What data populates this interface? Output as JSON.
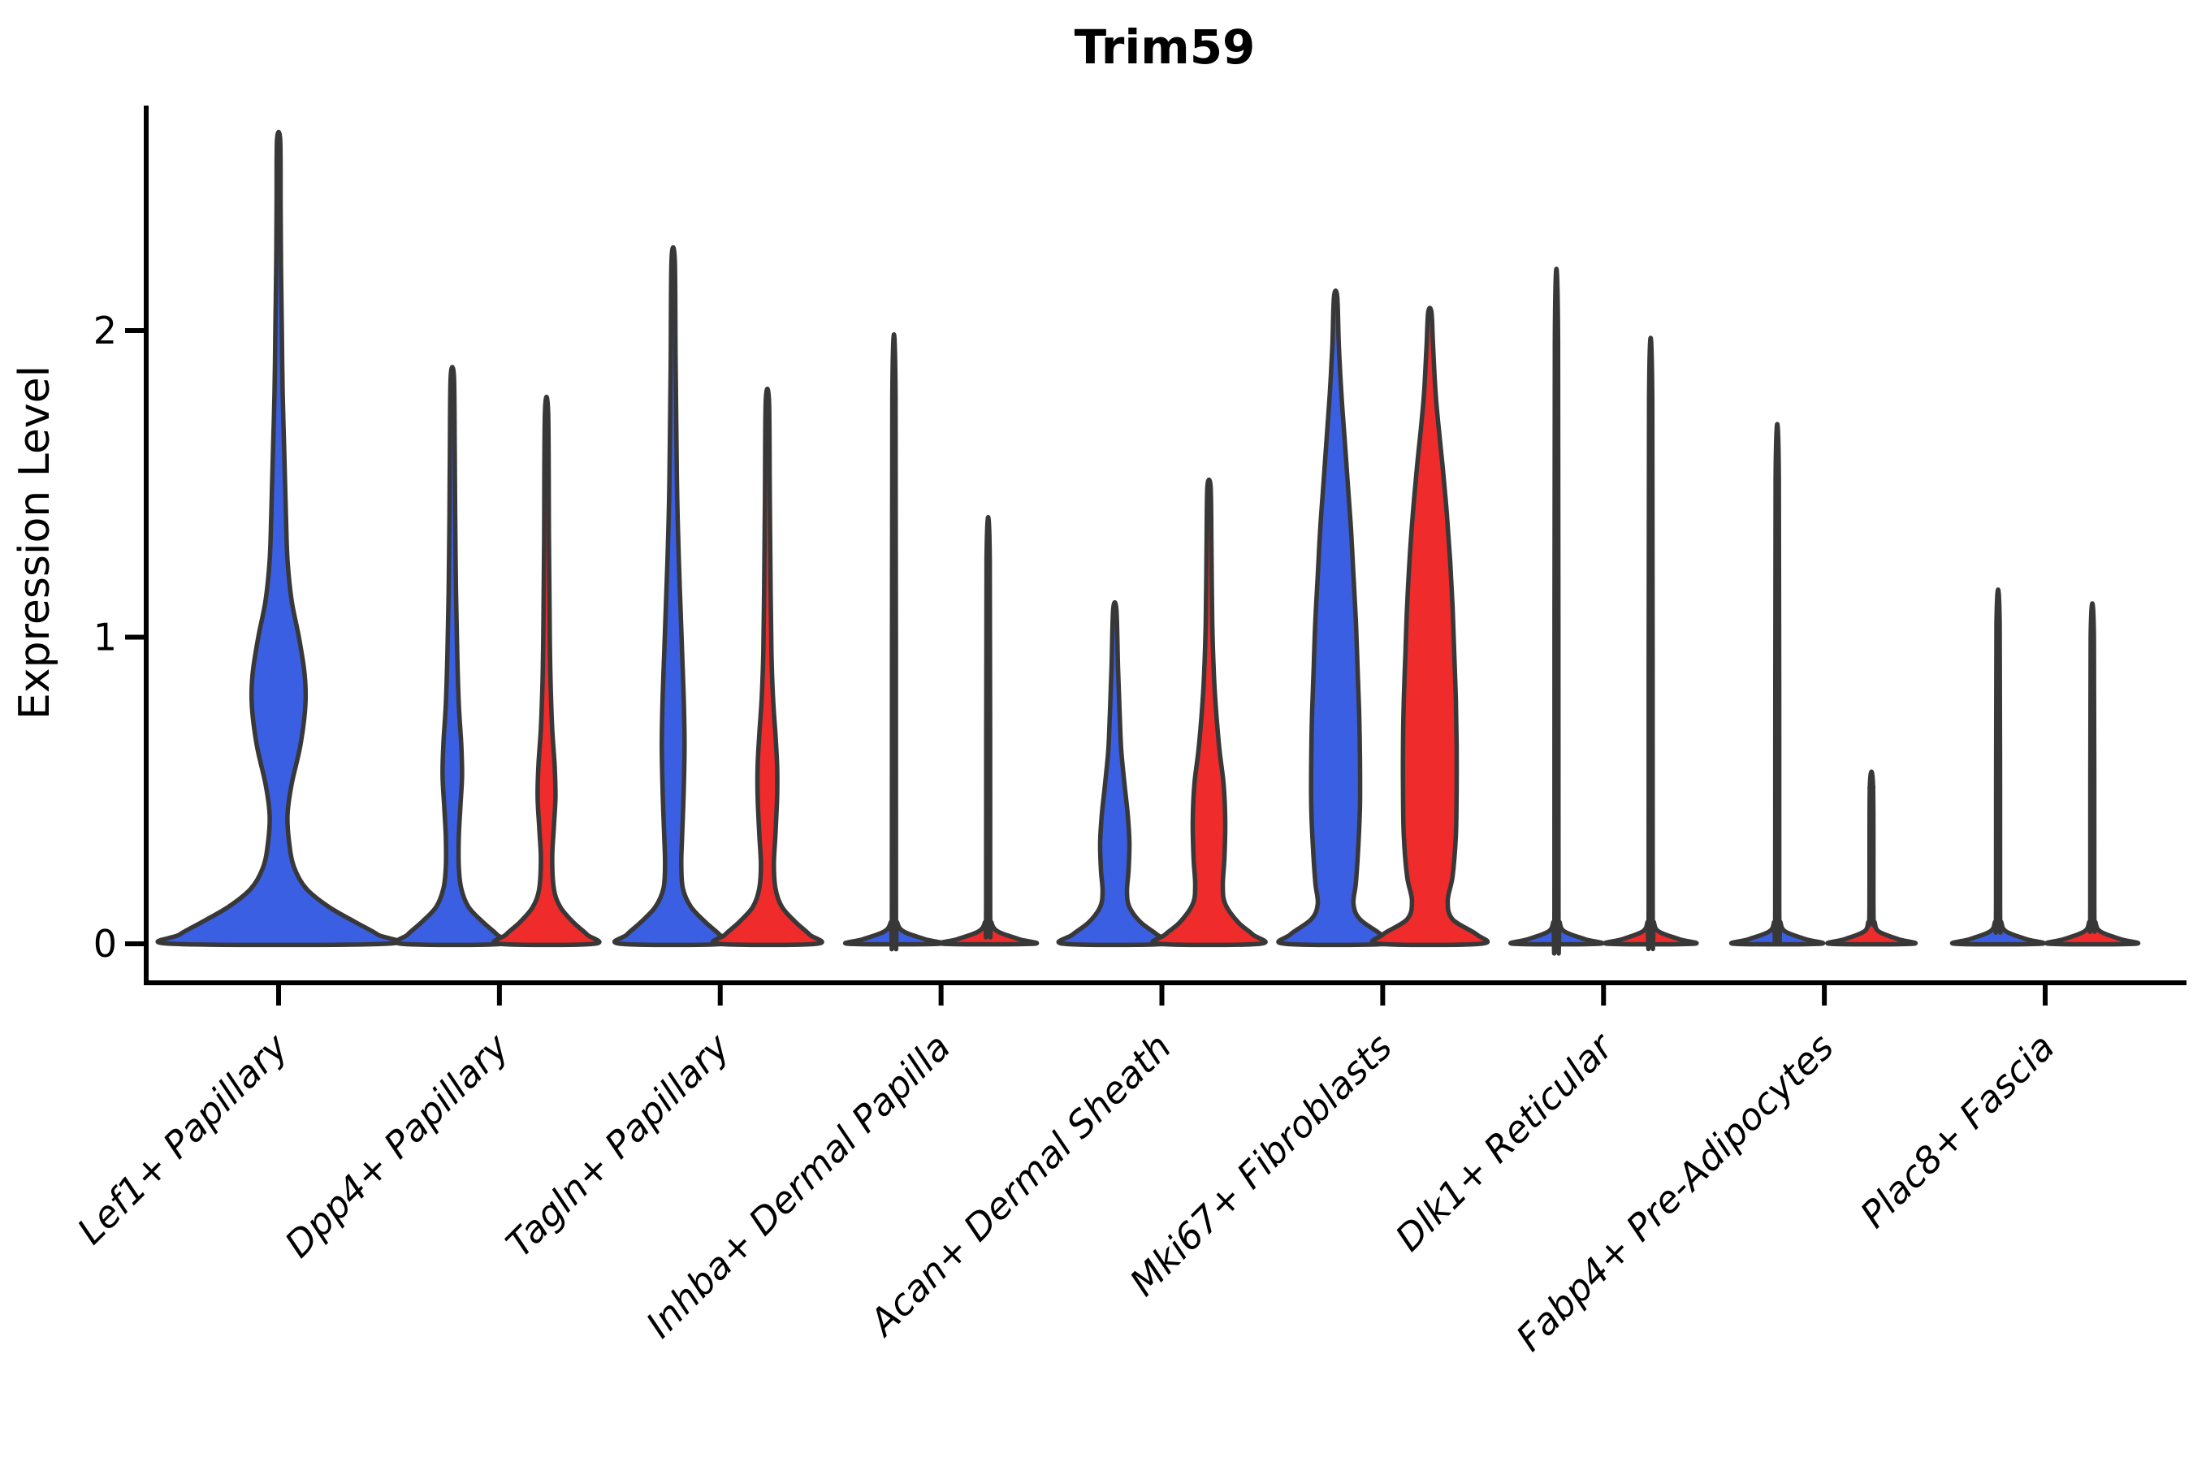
{
  "title": "Trim59",
  "axes": {
    "y_label": "Expression Level",
    "y_tick_labels": [
      "0",
      "1",
      "2"
    ]
  },
  "chart_data": {
    "type": "violin",
    "title": "Trim59",
    "xlabel": "",
    "ylabel": "Expression Level",
    "ylim": [
      -0.13,
      2.74
    ],
    "y_ticks": [
      0,
      1,
      2
    ],
    "grid": false,
    "legend": "none",
    "outline_color": "#383838",
    "series_colors": {
      "blue": "#3B5FE2",
      "red": "#EF2B2B"
    },
    "categories": [
      "Lef1+ Papillary",
      "Dpp4+ Papillary",
      "Tagln+ Papillary",
      "Inhba+ Dermal Papilla",
      "Acan+ Dermal Sheath",
      "Mki67+ Fibroblasts",
      "Dlk1+ Reticular",
      "Fabp4+ Pre-Adipocytes",
      "Plac8+ Fascia"
    ],
    "groups": [
      {
        "category": "Lef1+ Papillary",
        "violins": [
          {
            "color": "blue",
            "offset": 0,
            "max": 2.62,
            "profile": [
              [
                0,
                131
              ],
              [
                0.03,
                122
              ],
              [
                0.07,
                95
              ],
              [
                0.12,
                62
              ],
              [
                0.18,
                34
              ],
              [
                0.25,
                19
              ],
              [
                0.33,
                13
              ],
              [
                0.42,
                11
              ],
              [
                0.52,
                16
              ],
              [
                0.65,
                27
              ],
              [
                0.78,
                33
              ],
              [
                0.88,
                32
              ],
              [
                1.0,
                25
              ],
              [
                1.12,
                16
              ],
              [
                1.25,
                11
              ],
              [
                1.4,
                9
              ],
              [
                1.6,
                7
              ],
              [
                1.8,
                5
              ],
              [
                2.0,
                4
              ],
              [
                2.2,
                3
              ],
              [
                2.4,
                2.5
              ],
              [
                2.62,
                2
              ]
            ]
          }
        ]
      },
      {
        "category": "Dpp4+ Papillary",
        "violins": [
          {
            "color": "blue",
            "offset": -1,
            "max": 1.85,
            "profile": [
              [
                0,
                62
              ],
              [
                0.03,
                55
              ],
              [
                0.07,
                38
              ],
              [
                0.12,
                20
              ],
              [
                0.18,
                11
              ],
              [
                0.25,
                8
              ],
              [
                0.35,
                8
              ],
              [
                0.45,
                10
              ],
              [
                0.55,
                12
              ],
              [
                0.65,
                11
              ],
              [
                0.78,
                8
              ],
              [
                0.95,
                6
              ],
              [
                1.15,
                4.5
              ],
              [
                1.4,
                3.5
              ],
              [
                1.6,
                3
              ],
              [
                1.85,
                2
              ]
            ]
          },
          {
            "color": "red",
            "offset": 1,
            "max": 1.73,
            "profile": [
              [
                0,
                58
              ],
              [
                0.03,
                50
              ],
              [
                0.07,
                33
              ],
              [
                0.12,
                17
              ],
              [
                0.18,
                9
              ],
              [
                0.28,
                7
              ],
              [
                0.38,
                9
              ],
              [
                0.48,
                11
              ],
              [
                0.58,
                10
              ],
              [
                0.7,
                7
              ],
              [
                0.85,
                5
              ],
              [
                1.0,
                4
              ],
              [
                1.3,
                3
              ],
              [
                1.73,
                2
              ]
            ]
          }
        ]
      },
      {
        "category": "Tagln+ Papillary",
        "violins": [
          {
            "color": "blue",
            "offset": -1,
            "max": 2.23,
            "profile": [
              [
                0,
                64
              ],
              [
                0.03,
                57
              ],
              [
                0.07,
                40
              ],
              [
                0.12,
                22
              ],
              [
                0.18,
                12
              ],
              [
                0.26,
                10
              ],
              [
                0.35,
                11
              ],
              [
                0.5,
                13
              ],
              [
                0.65,
                14
              ],
              [
                0.8,
                13
              ],
              [
                0.95,
                11
              ],
              [
                1.1,
                9
              ],
              [
                1.25,
                7
              ],
              [
                1.45,
                5
              ],
              [
                1.65,
                4
              ],
              [
                1.9,
                3
              ],
              [
                2.23,
                2
              ]
            ]
          },
          {
            "color": "red",
            "offset": 1,
            "max": 1.77,
            "profile": [
              [
                0,
                60
              ],
              [
                0.03,
                52
              ],
              [
                0.07,
                35
              ],
              [
                0.12,
                18
              ],
              [
                0.18,
                10
              ],
              [
                0.26,
                8
              ],
              [
                0.36,
                10
              ],
              [
                0.48,
                12
              ],
              [
                0.58,
                12
              ],
              [
                0.68,
                10
              ],
              [
                0.8,
                7
              ],
              [
                0.95,
                5
              ],
              [
                1.15,
                4
              ],
              [
                1.45,
                3
              ],
              [
                1.77,
                2
              ]
            ]
          }
        ]
      },
      {
        "category": "Inhba+ Dermal Papilla",
        "violins": [
          {
            "color": "blue",
            "offset": -1,
            "max": 1.78,
            "profile": [
              [
                0,
                55
              ],
              [
                0.015,
                38
              ],
              [
                0.04,
                12
              ],
              [
                0.07,
                4
              ],
              [
                0.12,
                2.5
              ],
              [
                1.78,
                2
              ]
            ]
          },
          {
            "color": "red",
            "offset": 1,
            "max": 1.25,
            "profile": [
              [
                0,
                55
              ],
              [
                0.015,
                38
              ],
              [
                0.04,
                12
              ],
              [
                0.07,
                4
              ],
              [
                0.12,
                2.5
              ],
              [
                1.25,
                2
              ]
            ]
          }
        ]
      },
      {
        "category": "Acan+ Dermal Sheath",
        "violins": [
          {
            "color": "blue",
            "offset": -1,
            "max": 1.09,
            "profile": [
              [
                0,
                62
              ],
              [
                0.03,
                52
              ],
              [
                0.07,
                32
              ],
              [
                0.12,
                18
              ],
              [
                0.17,
                15
              ],
              [
                0.24,
                17
              ],
              [
                0.33,
                18
              ],
              [
                0.42,
                16
              ],
              [
                0.52,
                12
              ],
              [
                0.63,
                8
              ],
              [
                0.75,
                6
              ],
              [
                0.9,
                4
              ],
              [
                1.09,
                2
              ]
            ]
          },
          {
            "color": "red",
            "offset": 1,
            "max": 1.49,
            "profile": [
              [
                0,
                62
              ],
              [
                0.03,
                54
              ],
              [
                0.07,
                36
              ],
              [
                0.13,
                20
              ],
              [
                0.19,
                17
              ],
              [
                0.28,
                19
              ],
              [
                0.4,
                20
              ],
              [
                0.52,
                18
              ],
              [
                0.63,
                13
              ],
              [
                0.75,
                9
              ],
              [
                0.88,
                6
              ],
              [
                1.05,
                4
              ],
              [
                1.3,
                3
              ],
              [
                1.49,
                2
              ]
            ]
          }
        ]
      },
      {
        "category": "Mki67+ Fibroblasts",
        "violins": [
          {
            "color": "blue",
            "offset": -1,
            "max": 2.11,
            "profile": [
              [
                0,
                62
              ],
              [
                0.03,
                56
              ],
              [
                0.08,
                30
              ],
              [
                0.13,
                22
              ],
              [
                0.2,
                25
              ],
              [
                0.32,
                28
              ],
              [
                0.45,
                30
              ],
              [
                0.6,
                30
              ],
              [
                0.75,
                29
              ],
              [
                0.9,
                27
              ],
              [
                1.05,
                25
              ],
              [
                1.2,
                22
              ],
              [
                1.35,
                19
              ],
              [
                1.5,
                15
              ],
              [
                1.65,
                11
              ],
              [
                1.8,
                7
              ],
              [
                1.95,
                4
              ],
              [
                2.11,
                2
              ]
            ]
          },
          {
            "color": "red",
            "offset": 1,
            "max": 2.06,
            "profile": [
              [
                0,
                62
              ],
              [
                0.03,
                58
              ],
              [
                0.08,
                28
              ],
              [
                0.14,
                22
              ],
              [
                0.22,
                28
              ],
              [
                0.35,
                32
              ],
              [
                0.5,
                33
              ],
              [
                0.65,
                33
              ],
              [
                0.8,
                32
              ],
              [
                0.95,
                30
              ],
              [
                1.1,
                28
              ],
              [
                1.25,
                25
              ],
              [
                1.4,
                21
              ],
              [
                1.55,
                16
              ],
              [
                1.68,
                11
              ],
              [
                1.8,
                7
              ],
              [
                1.95,
                4
              ],
              [
                2.06,
                2
              ]
            ]
          }
        ]
      },
      {
        "category": "Dlk1+ Reticular",
        "violins": [
          {
            "color": "blue",
            "offset": -1,
            "max": 1.97,
            "profile": [
              [
                0,
                52
              ],
              [
                0.015,
                35
              ],
              [
                0.04,
                10
              ],
              [
                0.07,
                4
              ],
              [
                0.12,
                2.5
              ],
              [
                1.97,
                2
              ]
            ]
          },
          {
            "color": "red",
            "offset": 1,
            "max": 1.77,
            "profile": [
              [
                0,
                52
              ],
              [
                0.015,
                35
              ],
              [
                0.04,
                10
              ],
              [
                0.07,
                4
              ],
              [
                0.12,
                2.5
              ],
              [
                1.77,
                2
              ]
            ]
          }
        ]
      },
      {
        "category": "Fabp4+ Pre-Adipocytes",
        "violins": [
          {
            "color": "blue",
            "offset": -1,
            "max": 1.52,
            "profile": [
              [
                0,
                52
              ],
              [
                0.015,
                35
              ],
              [
                0.04,
                10
              ],
              [
                0.07,
                4
              ],
              [
                0.12,
                2.5
              ],
              [
                1.52,
                2
              ]
            ]
          },
          {
            "color": "red",
            "offset": 1,
            "max": 0.51,
            "profile": [
              [
                0,
                50
              ],
              [
                0.015,
                33
              ],
              [
                0.04,
                9
              ],
              [
                0.07,
                4
              ],
              [
                0.1,
                2.5
              ],
              [
                0.51,
                2
              ]
            ],
            "points": [
              0.16,
              0.2,
              0.31,
              0.42,
              0.51
            ]
          }
        ]
      },
      {
        "category": "Plac8+ Fascia",
        "violins": [
          {
            "color": "blue",
            "offset": -1,
            "max": 1.04,
            "profile": [
              [
                0,
                52
              ],
              [
                0.015,
                35
              ],
              [
                0.04,
                10
              ],
              [
                0.07,
                4
              ],
              [
                0.12,
                2.5
              ],
              [
                1.04,
                2
              ]
            ]
          },
          {
            "color": "red",
            "offset": 1,
            "max": 1.0,
            "profile": [
              [
                0,
                52
              ],
              [
                0.015,
                35
              ],
              [
                0.04,
                10
              ],
              [
                0.07,
                4
              ],
              [
                0.12,
                2.5
              ],
              [
                1.0,
                2
              ]
            ]
          }
        ]
      }
    ]
  }
}
